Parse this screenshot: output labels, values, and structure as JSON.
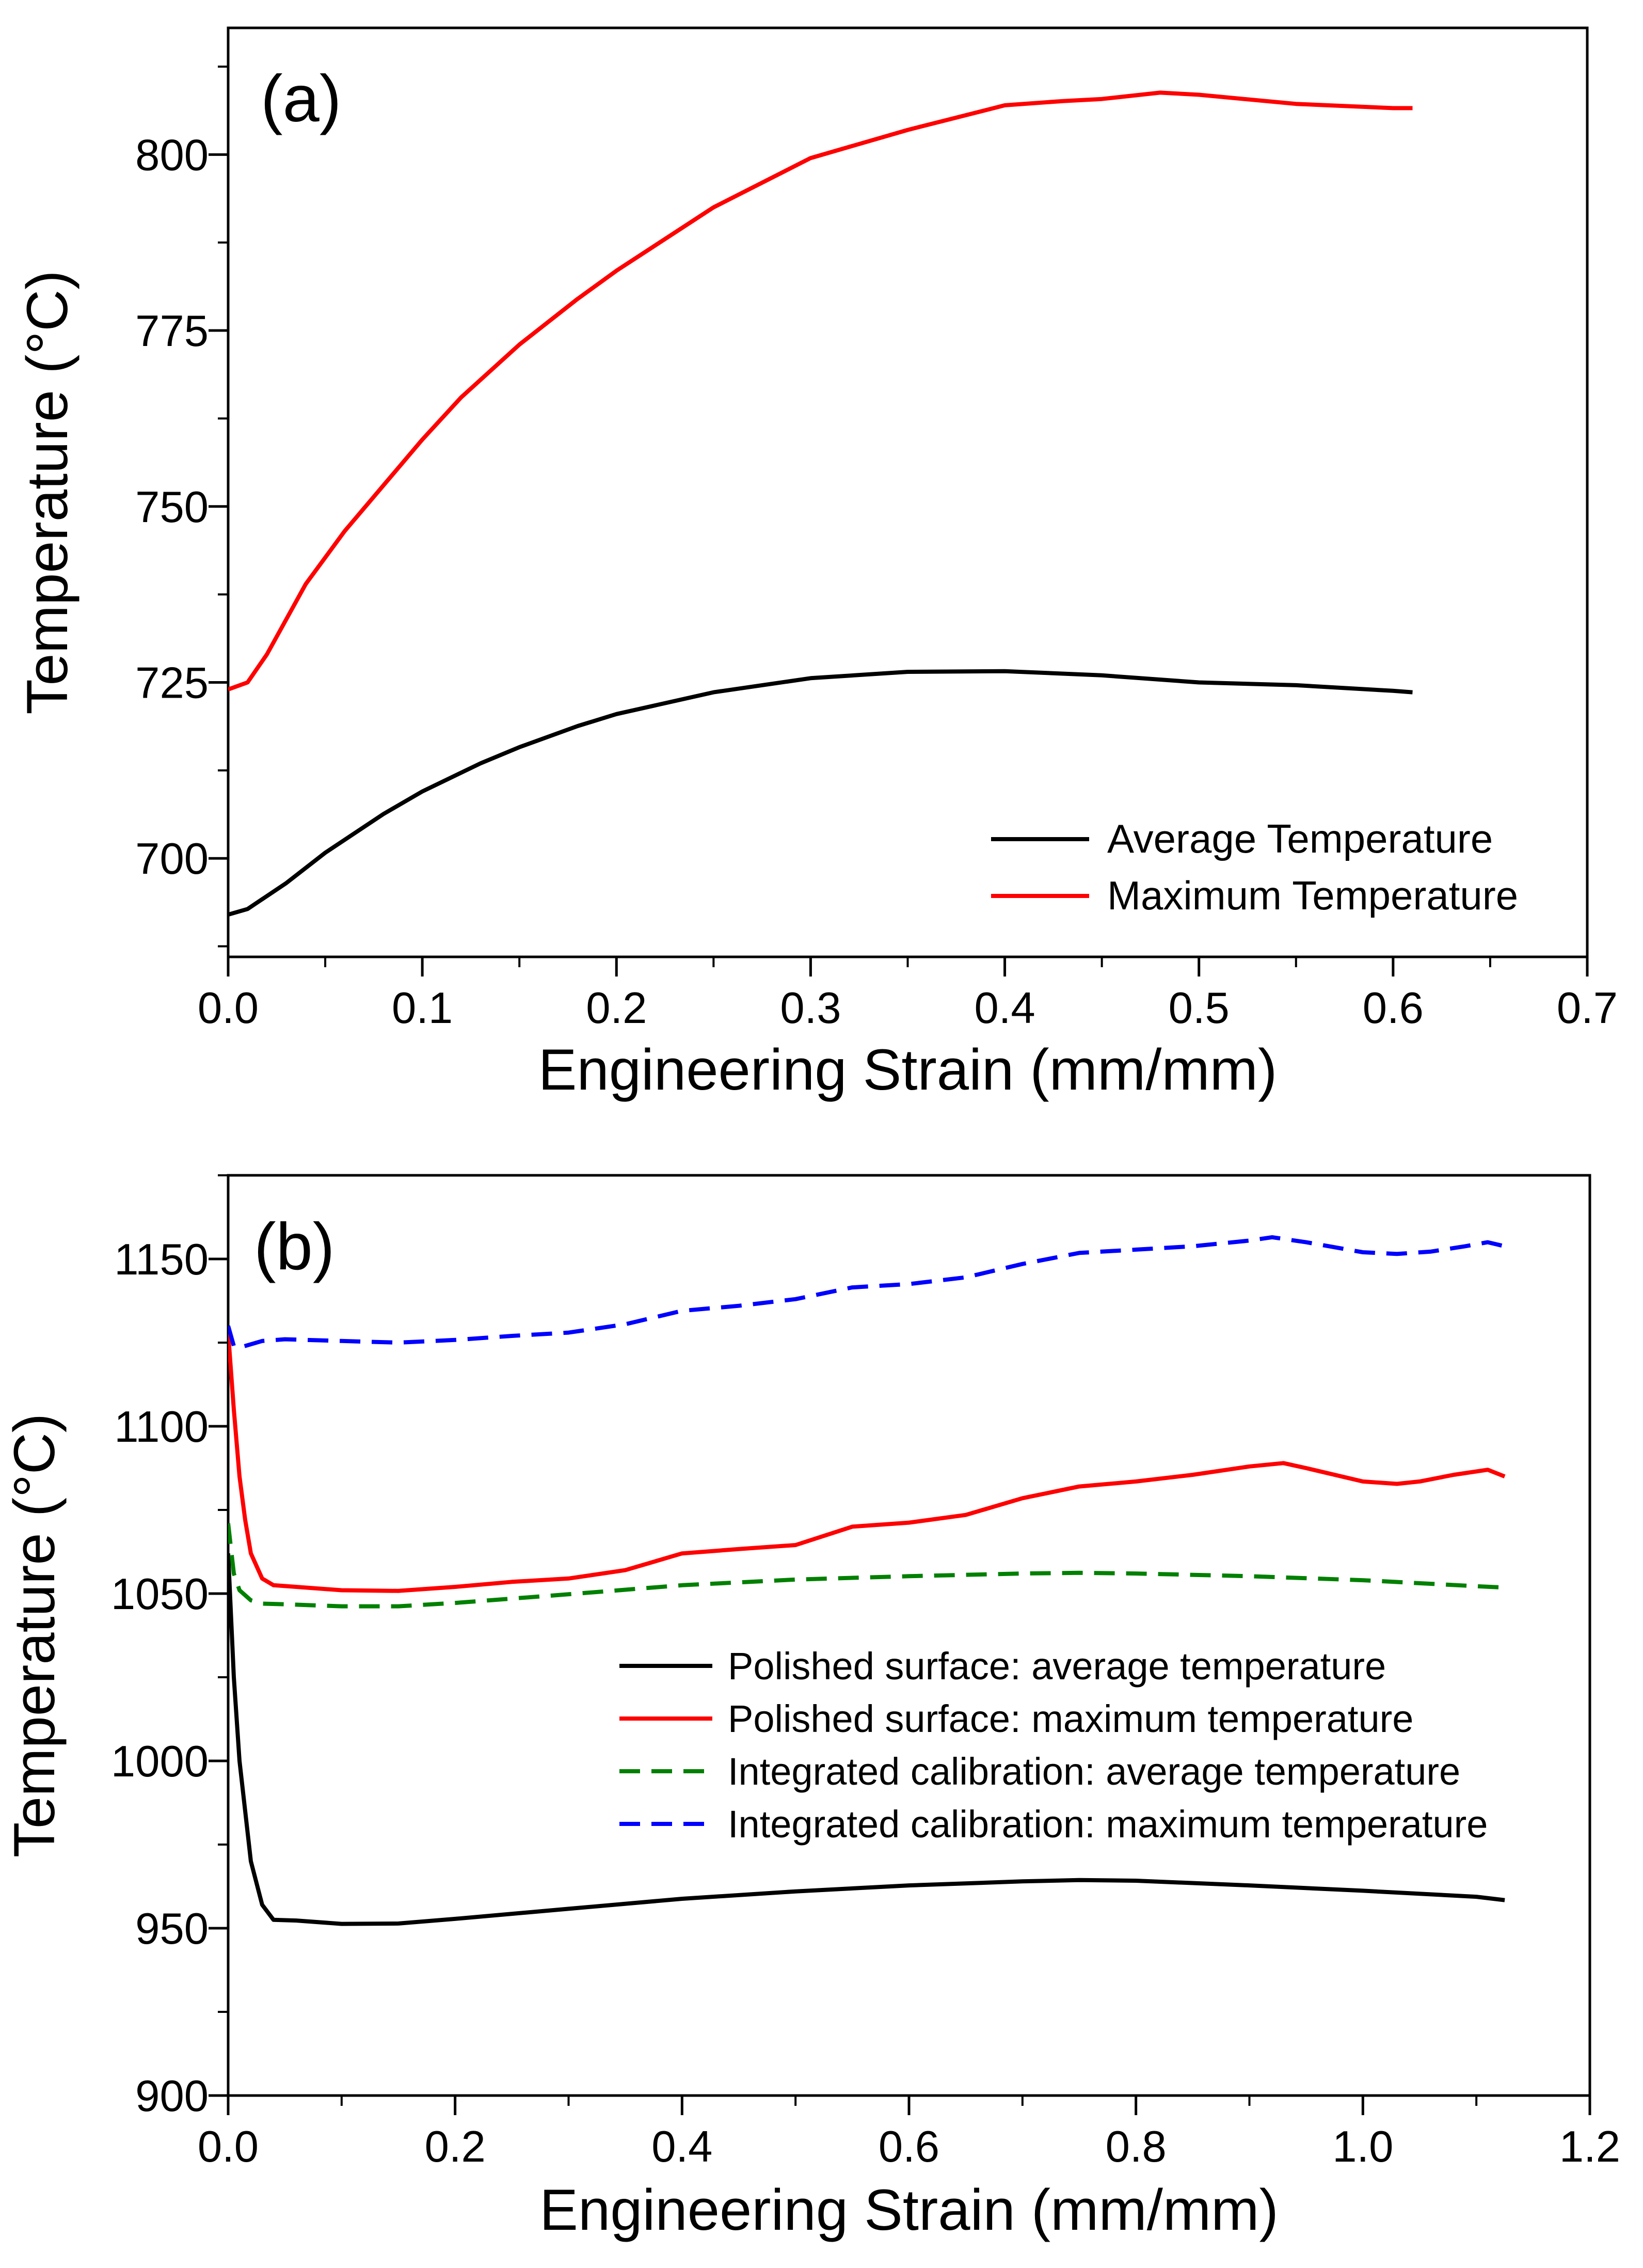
{
  "chart_data": [
    {
      "type": "line",
      "panel_label": "(a)",
      "xlabel": "Engineering Strain (mm/mm)",
      "ylabel": "Temperature (°C)",
      "xlim": [
        0.0,
        0.7
      ],
      "ylim": [
        686,
        818
      ],
      "x_ticks": [
        0.0,
        0.1,
        0.2,
        0.3,
        0.4,
        0.5,
        0.6,
        0.7
      ],
      "x_tick_labels": [
        "0.0",
        "0.1",
        "0.2",
        "0.3",
        "0.4",
        "0.5",
        "0.6",
        "0.7"
      ],
      "y_ticks": [
        700,
        725,
        750,
        775,
        800
      ],
      "y_tick_labels": [
        "700",
        "725",
        "750",
        "775",
        "800"
      ],
      "legend_position": "bottom-right",
      "series": [
        {
          "name": "Average Temperature",
          "color": "#000000",
          "dash": "solid",
          "x": [
            0.0,
            0.01,
            0.03,
            0.05,
            0.08,
            0.1,
            0.13,
            0.15,
            0.18,
            0.2,
            0.25,
            0.3,
            0.35,
            0.4,
            0.45,
            0.5,
            0.55,
            0.6,
            0.61
          ],
          "y": [
            692,
            692.8,
            696.5,
            700.8,
            706.3,
            709.5,
            713.5,
            715.8,
            718.8,
            720.5,
            723.6,
            725.6,
            726.5,
            726.6,
            726.0,
            725.0,
            724.6,
            723.8,
            723.6
          ]
        },
        {
          "name": "Maximum Temperature",
          "color": "#ff0000",
          "dash": "solid",
          "x": [
            0.0,
            0.01,
            0.02,
            0.04,
            0.06,
            0.08,
            0.1,
            0.12,
            0.15,
            0.18,
            0.2,
            0.25,
            0.3,
            0.35,
            0.4,
            0.43,
            0.45,
            0.48,
            0.5,
            0.55,
            0.6,
            0.61
          ],
          "y": [
            724,
            725,
            729,
            739,
            746.5,
            753,
            759.5,
            765.5,
            773,
            779.5,
            783.5,
            792.5,
            799.5,
            803.5,
            807,
            807.6,
            807.9,
            808.8,
            808.5,
            807.2,
            806.6,
            806.6
          ]
        }
      ]
    },
    {
      "type": "line",
      "panel_label": "(b)",
      "xlabel": "Engineering Strain (mm/mm)",
      "ylabel": "Temperature (°C)",
      "xlim": [
        0.0,
        1.2
      ],
      "ylim": [
        900,
        1175
      ],
      "x_ticks": [
        0.0,
        0.2,
        0.4,
        0.6,
        0.8,
        1.0,
        1.2
      ],
      "x_tick_labels": [
        "0.0",
        "0.2",
        "0.4",
        "0.6",
        "0.8",
        "1.0",
        "1.2"
      ],
      "y_ticks": [
        900,
        950,
        1000,
        1050,
        1100,
        1150
      ],
      "y_tick_labels": [
        "900",
        "950",
        "1000",
        "1050",
        "1100",
        "1150"
      ],
      "legend_position": "center-right",
      "series": [
        {
          "name": "Polished surface: average temperature",
          "color": "#000000",
          "dash": "solid",
          "x": [
            0.0,
            0.005,
            0.01,
            0.02,
            0.03,
            0.04,
            0.06,
            0.1,
            0.15,
            0.2,
            0.3,
            0.4,
            0.5,
            0.6,
            0.7,
            0.75,
            0.8,
            0.9,
            1.0,
            1.1,
            1.125
          ],
          "y": [
            1062,
            1025,
            1000,
            970,
            957,
            952.5,
            952.3,
            951.3,
            951.4,
            952.8,
            955.8,
            958.8,
            961,
            962.8,
            964,
            964.4,
            964.2,
            962.8,
            961.2,
            959.4,
            958.4
          ]
        },
        {
          "name": "Polished surface: maximum temperature",
          "color": "#ff0000",
          "dash": "solid",
          "x": [
            0.0,
            0.005,
            0.01,
            0.015,
            0.02,
            0.03,
            0.04,
            0.06,
            0.1,
            0.15,
            0.2,
            0.25,
            0.3,
            0.35,
            0.4,
            0.45,
            0.5,
            0.55,
            0.6,
            0.65,
            0.7,
            0.75,
            0.8,
            0.85,
            0.9,
            0.93,
            0.95,
            1.0,
            1.03,
            1.05,
            1.08,
            1.11,
            1.125
          ],
          "y": [
            1128,
            1105,
            1085,
            1072,
            1062,
            1054.5,
            1052.5,
            1052,
            1051,
            1050.8,
            1052,
            1053.5,
            1054.5,
            1057,
            1062,
            1063.3,
            1064.5,
            1070,
            1071.2,
            1073.5,
            1078.5,
            1082,
            1083.5,
            1085.5,
            1088,
            1089,
            1087.5,
            1083.5,
            1082.8,
            1083.5,
            1085.5,
            1087,
            1085
          ]
        },
        {
          "name": "Integrated calibration: average temperature",
          "color": "#008000",
          "dash": "dashed",
          "x": [
            0.0,
            0.005,
            0.01,
            0.02,
            0.03,
            0.05,
            0.1,
            0.15,
            0.2,
            0.3,
            0.4,
            0.5,
            0.6,
            0.7,
            0.75,
            0.8,
            0.9,
            1.0,
            1.1,
            1.125
          ],
          "y": [
            1071,
            1056,
            1051,
            1048,
            1047,
            1046.8,
            1046.2,
            1046.2,
            1047.2,
            1049.8,
            1052.5,
            1054.2,
            1055.2,
            1056,
            1056.2,
            1056,
            1055.2,
            1054,
            1052.2,
            1051.8
          ]
        },
        {
          "name": "Integrated calibration: maximum temperature",
          "color": "#0000ff",
          "dash": "dashed",
          "x": [
            0.0,
            0.005,
            0.01,
            0.03,
            0.05,
            0.1,
            0.15,
            0.2,
            0.25,
            0.3,
            0.35,
            0.4,
            0.45,
            0.5,
            0.55,
            0.6,
            0.65,
            0.7,
            0.75,
            0.8,
            0.85,
            0.9,
            0.92,
            0.95,
            1.0,
            1.03,
            1.06,
            1.09,
            1.11,
            1.125
          ],
          "y": [
            1130,
            1124,
            1123.5,
            1125.5,
            1126,
            1125.5,
            1125,
            1125.8,
            1127,
            1128,
            1130.5,
            1134.5,
            1136,
            1138,
            1141.5,
            1142.5,
            1144.5,
            1148.5,
            1151.8,
            1152.8,
            1153.8,
            1155.5,
            1156.5,
            1155,
            1152,
            1151.5,
            1152.2,
            1153.8,
            1155,
            1153.8
          ]
        }
      ]
    }
  ]
}
